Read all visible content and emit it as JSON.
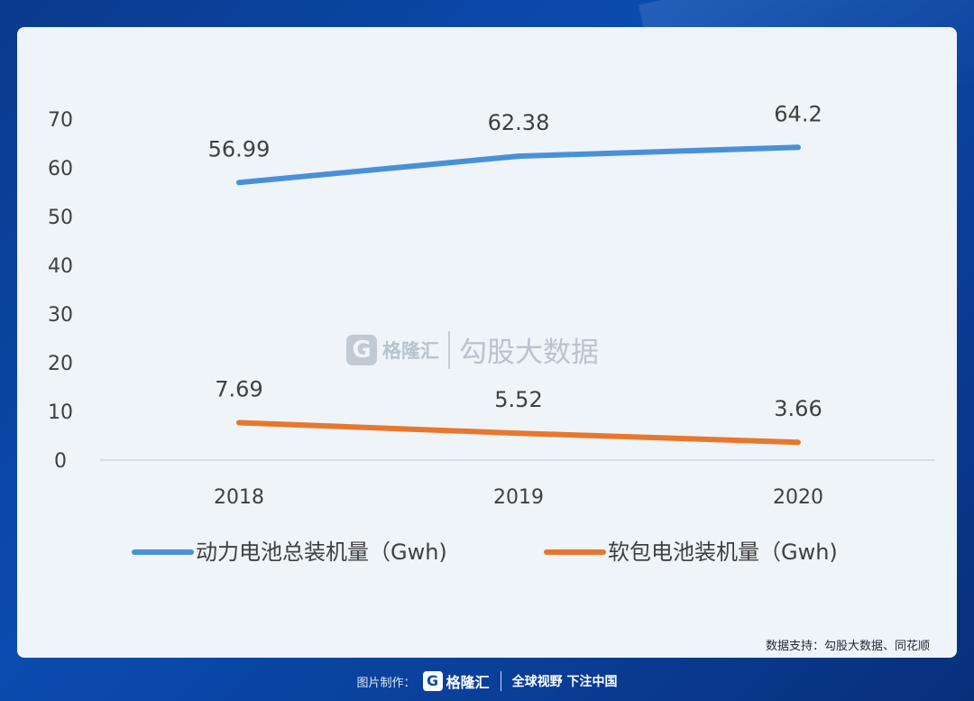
{
  "chart_data": {
    "type": "line",
    "categories": [
      "2018",
      "2019",
      "2020"
    ],
    "series": [
      {
        "name": "动力电池总装机量（Gwh)",
        "values": [
          56.99,
          62.38,
          64.2
        ],
        "color": "#4a90d9"
      },
      {
        "name": "软包电池装机量（Gwh)",
        "values": [
          7.69,
          5.52,
          3.66
        ],
        "color": "#e8772e"
      }
    ],
    "ylim": [
      0,
      70
    ],
    "yticks": [
      0,
      10,
      20,
      30,
      40,
      50,
      60,
      70
    ],
    "grid": false,
    "legend": "bottom"
  },
  "watermark": {
    "logo_letter": "G",
    "brand": "格隆汇",
    "source": "勾股大数据"
  },
  "data_source": "数据支持：勾股大数据、同花顺",
  "footer": {
    "label": "图片制作：",
    "logo_letter": "G",
    "brand": "格隆汇",
    "slogan": "全球视野 下注中国"
  },
  "colors": {
    "background": "#0b4cb0",
    "card": "#eef4f8",
    "axis_text": "#404040"
  }
}
